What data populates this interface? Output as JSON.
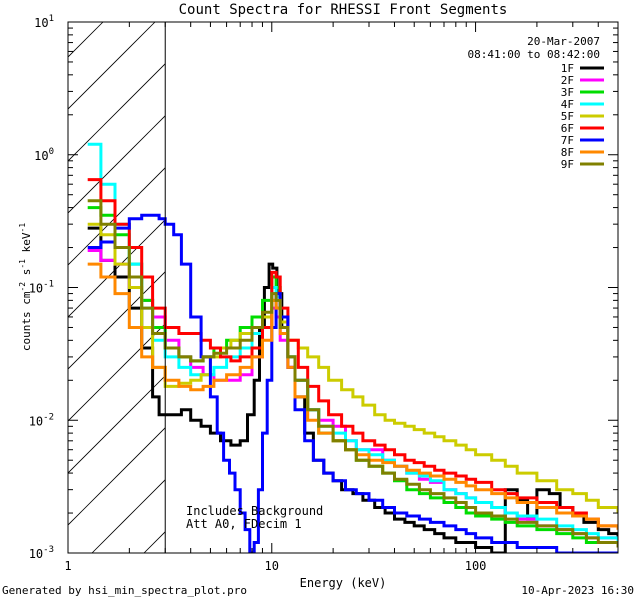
{
  "chart_data": {
    "type": "line",
    "title": "Count Spectra for RHESSI Front Segments",
    "xlabel": "Energy (keV)",
    "ylabel_parts": {
      "base": "counts cm",
      "exp1": "-2",
      "mid1": " s",
      "exp2": "-1",
      "mid2": " keV",
      "exp3": "-1"
    },
    "xscale": "log",
    "yscale": "log",
    "xlim": [
      1,
      500
    ],
    "ylim": [
      0.001,
      10
    ],
    "x_ticks": [
      {
        "value": 1,
        "label": "1"
      },
      {
        "value": 10,
        "label": "10"
      },
      {
        "value": 100,
        "label": "100"
      }
    ],
    "y_ticks": [
      {
        "value": 0.001,
        "base": "10",
        "exp": "-3"
      },
      {
        "value": 0.01,
        "base": "10",
        "exp": "-2"
      },
      {
        "value": 0.1,
        "base": "10",
        "exp": "-1"
      },
      {
        "value": 1,
        "base": "10",
        "exp": "0"
      },
      {
        "value": 10,
        "base": "10",
        "exp": "1"
      }
    ],
    "excluded_region_energy": [
      1,
      3
    ],
    "date": "20-Mar-2007",
    "time_range": "08:41:00 to 08:42:00",
    "annotation_lines": [
      "Includes Background",
      "Att A0, FDecim 1"
    ],
    "series": [
      {
        "name": "1F",
        "color": "#000000",
        "x": [
          1.25,
          1.45,
          1.7,
          2.0,
          2.3,
          2.6,
          2.8,
          3.0,
          3.3,
          3.6,
          4.0,
          4.5,
          5.0,
          5.6,
          6.3,
          7.0,
          7.6,
          8.2,
          8.7,
          9.2,
          9.7,
          10.1,
          10.6,
          11.2,
          12.0,
          13.0,
          14.5,
          16,
          18,
          20,
          22,
          25,
          28,
          32,
          36,
          40,
          45,
          50,
          56,
          63,
          70,
          80,
          90,
          100,
          120,
          140,
          160,
          180,
          200,
          230,
          260,
          300,
          340,
          400,
          450,
          500
        ],
        "y": [
          0.28,
          0.16,
          0.12,
          0.07,
          0.035,
          0.015,
          0.011,
          0.011,
          0.011,
          0.012,
          0.01,
          0.009,
          0.008,
          0.007,
          0.0065,
          0.007,
          0.011,
          0.02,
          0.05,
          0.1,
          0.15,
          0.14,
          0.09,
          0.05,
          0.03,
          0.015,
          0.008,
          0.005,
          0.004,
          0.0035,
          0.003,
          0.0028,
          0.0025,
          0.0022,
          0.002,
          0.0018,
          0.0017,
          0.0016,
          0.0015,
          0.0014,
          0.0013,
          0.0012,
          0.0012,
          0.0011,
          0.001,
          0.003,
          0.0025,
          0.0018,
          0.003,
          0.0028,
          0.0022,
          0.0019,
          0.0017,
          0.0015,
          0.0014,
          0.0013
        ]
      },
      {
        "name": "2F",
        "color": "#ff00ff",
        "x": [
          1.25,
          1.45,
          1.7,
          2.0,
          2.3,
          2.6,
          3.0,
          3.5,
          4.0,
          4.6,
          5.2,
          6.0,
          7.0,
          8.0,
          9.0,
          10.0,
          10.5,
          11.0,
          12.0,
          13.0,
          15,
          17,
          20,
          23,
          26,
          30,
          35,
          40,
          46,
          53,
          60,
          70,
          80,
          90,
          100,
          120,
          140,
          160,
          200,
          250,
          300,
          350,
          400,
          500
        ],
        "y": [
          0.19,
          0.16,
          0.15,
          0.1,
          0.08,
          0.06,
          0.04,
          0.03,
          0.025,
          0.022,
          0.02,
          0.02,
          0.022,
          0.03,
          0.05,
          0.07,
          0.06,
          0.04,
          0.025,
          0.02,
          0.012,
          0.01,
          0.009,
          0.007,
          0.006,
          0.006,
          0.005,
          0.0045,
          0.004,
          0.0036,
          0.0034,
          0.003,
          0.0028,
          0.0026,
          0.0024,
          0.0022,
          0.002,
          0.0018,
          0.0016,
          0.0015,
          0.0014,
          0.0013,
          0.0013,
          0.0012
        ]
      },
      {
        "name": "3F",
        "color": "#00dd00",
        "x": [
          1.25,
          1.45,
          1.7,
          2.0,
          2.3,
          2.6,
          3.0,
          3.5,
          4.0,
          4.6,
          5.2,
          6.0,
          7.0,
          8.0,
          9.0,
          10.0,
          10.5,
          11.0,
          12.0,
          13.0,
          15,
          17,
          20,
          23,
          26,
          30,
          35,
          40,
          46,
          53,
          60,
          70,
          80,
          90,
          100,
          120,
          140,
          160,
          200,
          250,
          300,
          350,
          400,
          500
        ],
        "y": [
          0.4,
          0.35,
          0.25,
          0.15,
          0.08,
          0.05,
          0.035,
          0.03,
          0.028,
          0.03,
          0.035,
          0.04,
          0.05,
          0.06,
          0.08,
          0.12,
          0.1,
          0.06,
          0.03,
          0.02,
          0.012,
          0.008,
          0.007,
          0.006,
          0.005,
          0.0045,
          0.004,
          0.0035,
          0.003,
          0.0028,
          0.0026,
          0.0024,
          0.0022,
          0.002,
          0.0019,
          0.0018,
          0.0017,
          0.0016,
          0.0015,
          0.0014,
          0.0013,
          0.0012,
          0.0012,
          0.0011
        ]
      },
      {
        "name": "4F",
        "color": "#00ffff",
        "x": [
          1.25,
          1.45,
          1.7,
          2.0,
          2.3,
          2.6,
          3.0,
          3.5,
          4.0,
          4.6,
          5.2,
          6.0,
          7.0,
          8.0,
          9.0,
          10.0,
          10.5,
          11.0,
          12.0,
          13.0,
          15,
          17,
          20,
          23,
          26,
          30,
          35,
          40,
          46,
          53,
          60,
          70,
          80,
          90,
          100,
          120,
          140,
          160,
          200,
          250,
          300,
          350,
          400,
          500
        ],
        "y": [
          1.2,
          0.6,
          0.3,
          0.15,
          0.07,
          0.04,
          0.03,
          0.025,
          0.022,
          0.022,
          0.025,
          0.03,
          0.035,
          0.045,
          0.06,
          0.1,
          0.085,
          0.05,
          0.03,
          0.02,
          0.012,
          0.009,
          0.008,
          0.007,
          0.006,
          0.0055,
          0.005,
          0.0045,
          0.004,
          0.0038,
          0.0035,
          0.003,
          0.0028,
          0.0026,
          0.0024,
          0.0022,
          0.002,
          0.0019,
          0.0018,
          0.0016,
          0.0015,
          0.0014,
          0.0013,
          0.0012
        ]
      },
      {
        "name": "5F",
        "color": "#cccc00",
        "x": [
          1.25,
          1.45,
          1.7,
          2.0,
          2.3,
          2.6,
          3.0,
          3.5,
          4.0,
          4.5,
          5.0,
          5.6,
          6.3,
          7.0,
          8.0,
          9.0,
          10.0,
          10.5,
          11.0,
          12.0,
          13.5,
          15,
          17,
          19,
          22,
          25,
          28,
          32,
          36,
          40,
          45,
          50,
          56,
          63,
          70,
          80,
          90,
          100,
          120,
          140,
          160,
          200,
          250,
          300,
          350,
          400,
          500
        ],
        "y": [
          0.3,
          0.25,
          0.15,
          0.1,
          0.05,
          0.025,
          0.018,
          0.019,
          0.02,
          0.022,
          0.03,
          0.035,
          0.04,
          0.045,
          0.05,
          0.06,
          0.08,
          0.07,
          0.055,
          0.04,
          0.035,
          0.03,
          0.025,
          0.02,
          0.017,
          0.015,
          0.013,
          0.011,
          0.01,
          0.0095,
          0.009,
          0.0085,
          0.008,
          0.0075,
          0.007,
          0.0065,
          0.006,
          0.0055,
          0.005,
          0.0045,
          0.004,
          0.0035,
          0.003,
          0.0028,
          0.0025,
          0.0022,
          0.002
        ]
      },
      {
        "name": "6F",
        "color": "#ff0000",
        "x": [
          1.25,
          1.45,
          1.7,
          2.0,
          2.3,
          2.6,
          3.0,
          3.5,
          4.0,
          4.5,
          5.0,
          5.6,
          6.3,
          7.0,
          8.0,
          9.0,
          10.0,
          10.5,
          11.0,
          12.0,
          13.5,
          15,
          17,
          19,
          22,
          25,
          28,
          32,
          36,
          40,
          45,
          50,
          56,
          63,
          70,
          80,
          90,
          100,
          120,
          140,
          160,
          200,
          250,
          300,
          350,
          400,
          500
        ],
        "y": [
          0.65,
          0.45,
          0.3,
          0.2,
          0.12,
          0.07,
          0.05,
          0.045,
          0.045,
          0.04,
          0.035,
          0.03,
          0.028,
          0.03,
          0.035,
          0.05,
          0.13,
          0.12,
          0.07,
          0.04,
          0.025,
          0.018,
          0.014,
          0.011,
          0.009,
          0.008,
          0.007,
          0.0065,
          0.006,
          0.0055,
          0.005,
          0.0048,
          0.0045,
          0.0042,
          0.004,
          0.0038,
          0.0036,
          0.0034,
          0.003,
          0.0028,
          0.0026,
          0.0024,
          0.0022,
          0.002,
          0.0018,
          0.0016,
          0.0015
        ]
      },
      {
        "name": "7F",
        "color": "#0000ff",
        "x": [
          1.25,
          1.45,
          1.7,
          2.0,
          2.3,
          2.6,
          2.8,
          3.0,
          3.3,
          3.6,
          4.0,
          4.5,
          5.0,
          5.4,
          5.8,
          6.2,
          6.6,
          7.0,
          7.4,
          7.8,
          8.2,
          8.6,
          9.0,
          9.5,
          10.0,
          10.5,
          11.0,
          12.0,
          13.0,
          14.5,
          16,
          18,
          20,
          23,
          26,
          30,
          35,
          40,
          46,
          53,
          60,
          70,
          80,
          90,
          100,
          120,
          140,
          160,
          200,
          250,
          300,
          350,
          400,
          500
        ],
        "y": [
          0.2,
          0.22,
          0.28,
          0.33,
          0.35,
          0.35,
          0.33,
          0.3,
          0.25,
          0.15,
          0.06,
          0.03,
          0.015,
          0.008,
          0.005,
          0.004,
          0.003,
          0.002,
          0.0015,
          0.001,
          0.0012,
          0.003,
          0.008,
          0.02,
          0.05,
          0.09,
          0.06,
          0.025,
          0.012,
          0.007,
          0.005,
          0.004,
          0.0035,
          0.003,
          0.0028,
          0.0025,
          0.0022,
          0.002,
          0.0019,
          0.0018,
          0.0017,
          0.0016,
          0.0015,
          0.0014,
          0.0013,
          0.0012,
          0.0012,
          0.0011,
          0.0011,
          0.001,
          0.001,
          0.001,
          0.001,
          0.001
        ]
      },
      {
        "name": "8F",
        "color": "#ff8800",
        "x": [
          1.25,
          1.45,
          1.7,
          2.0,
          2.3,
          2.6,
          3.0,
          3.5,
          4.0,
          4.6,
          5.2,
          6.0,
          7.0,
          8.0,
          9.0,
          10.0,
          10.5,
          11.0,
          12.0,
          13.0,
          15,
          17,
          20,
          23,
          26,
          30,
          35,
          40,
          46,
          53,
          60,
          70,
          80,
          90,
          100,
          120,
          140,
          160,
          200,
          250,
          300,
          350,
          400,
          500
        ],
        "y": [
          0.15,
          0.12,
          0.09,
          0.05,
          0.03,
          0.025,
          0.02,
          0.018,
          0.017,
          0.018,
          0.02,
          0.022,
          0.025,
          0.03,
          0.04,
          0.08,
          0.07,
          0.045,
          0.025,
          0.015,
          0.01,
          0.008,
          0.007,
          0.006,
          0.0055,
          0.005,
          0.0048,
          0.0045,
          0.0042,
          0.004,
          0.0038,
          0.0036,
          0.0034,
          0.0032,
          0.003,
          0.0028,
          0.0026,
          0.0024,
          0.0022,
          0.002,
          0.0019,
          0.0018,
          0.0016,
          0.0015
        ]
      },
      {
        "name": "9F",
        "color": "#808000",
        "x": [
          1.25,
          1.45,
          1.7,
          2.0,
          2.3,
          2.6,
          3.0,
          3.5,
          4.0,
          4.6,
          5.2,
          6.0,
          7.0,
          8.0,
          9.0,
          10.0,
          10.5,
          11.0,
          12.0,
          13.0,
          15,
          17,
          20,
          23,
          26,
          30,
          35,
          40,
          46,
          53,
          60,
          70,
          80,
          90,
          100,
          120,
          140,
          160,
          200,
          250,
          300,
          350,
          400,
          500
        ],
        "y": [
          0.45,
          0.3,
          0.2,
          0.12,
          0.07,
          0.045,
          0.035,
          0.03,
          0.028,
          0.03,
          0.032,
          0.035,
          0.04,
          0.05,
          0.065,
          0.09,
          0.08,
          0.05,
          0.03,
          0.02,
          0.012,
          0.009,
          0.007,
          0.006,
          0.005,
          0.0045,
          0.004,
          0.0036,
          0.0033,
          0.003,
          0.0028,
          0.0026,
          0.0024,
          0.0022,
          0.002,
          0.0019,
          0.0018,
          0.0017,
          0.0016,
          0.0015,
          0.0014,
          0.0013,
          0.0012,
          0.0011
        ]
      }
    ]
  },
  "footer": {
    "generated_by": "Generated by hsi_min_spectra_plot.pro",
    "timestamp": "10-Apr-2023 16:30"
  }
}
